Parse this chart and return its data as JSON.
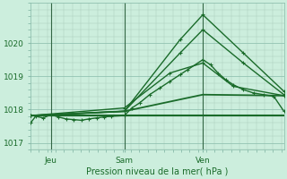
{
  "title": "Pression niveau de la mer( hPa )",
  "bg_color": "#cceedd",
  "grid_color_major": "#88bbaa",
  "grid_color_minor": "#aaccbb",
  "line_color": "#1a6b2a",
  "marker_color": "#1a6b2a",
  "ylim": [
    1016.8,
    1021.2
  ],
  "yticks": [
    1017,
    1018,
    1019,
    1020
  ],
  "day_labels": [
    "Jeu",
    "Sam",
    "Ven"
  ],
  "day_positions": [
    0.08,
    0.37,
    0.68
  ],
  "series": [
    {
      "x": [
        0.0,
        0.02,
        0.05,
        0.08,
        0.11,
        0.14,
        0.17,
        0.2,
        0.23,
        0.26,
        0.29,
        0.32,
        0.37,
        0.4,
        0.43,
        0.47,
        0.51,
        0.55,
        0.59,
        0.62,
        0.68,
        0.71,
        0.74,
        0.77,
        0.8,
        0.84,
        0.88,
        0.92,
        0.96,
        1.0
      ],
      "y": [
        1017.6,
        1017.8,
        1017.75,
        1017.85,
        1017.78,
        1017.72,
        1017.7,
        1017.68,
        1017.72,
        1017.75,
        1017.78,
        1017.8,
        1017.82,
        1018.05,
        1018.2,
        1018.45,
        1018.65,
        1018.85,
        1019.05,
        1019.2,
        1019.5,
        1019.35,
        1019.1,
        1018.9,
        1018.75,
        1018.6,
        1018.5,
        1018.45,
        1018.4,
        1017.95
      ],
      "lw": 1.0,
      "marker": "+"
    },
    {
      "x": [
        0.0,
        1.0
      ],
      "y": [
        1017.82,
        1017.82
      ],
      "lw": 1.5,
      "marker": null
    },
    {
      "x": [
        0.0,
        0.37,
        0.59,
        0.68,
        0.84,
        1.0
      ],
      "y": [
        1017.82,
        1017.95,
        1020.1,
        1020.85,
        1019.7,
        1018.55
      ],
      "lw": 1.0,
      "marker": "+"
    },
    {
      "x": [
        0.0,
        0.37,
        0.59,
        0.68,
        0.84,
        1.0
      ],
      "y": [
        1017.82,
        1017.95,
        1019.7,
        1020.4,
        1019.4,
        1018.45
      ],
      "lw": 1.0,
      "marker": "+"
    },
    {
      "x": [
        0.0,
        0.37,
        0.55,
        0.68,
        0.8,
        1.0
      ],
      "y": [
        1017.82,
        1018.05,
        1019.1,
        1019.4,
        1018.7,
        1018.42
      ],
      "lw": 1.0,
      "marker": "+"
    },
    {
      "x": [
        0.0,
        0.37,
        0.68,
        1.0
      ],
      "y": [
        1017.82,
        1017.95,
        1018.45,
        1018.42
      ],
      "lw": 1.3,
      "marker": null
    }
  ],
  "vline_positions": [
    0.08,
    0.37,
    0.68
  ],
  "vline_color": "#336644",
  "xlabel_fontsize": 7.0,
  "tick_fontsize": 6.5
}
